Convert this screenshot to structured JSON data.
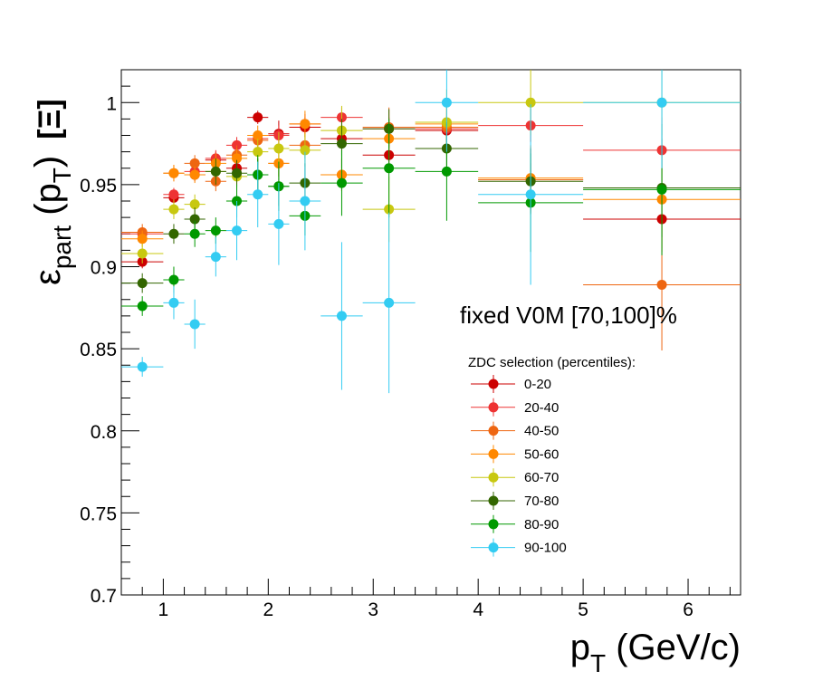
{
  "chart_data": {
    "type": "scatter",
    "title": "",
    "annotation": "fixed V0M [70,100]%",
    "xlabel": {
      "main": "p",
      "sub": "T",
      "rest": " (GeV/c)"
    },
    "ylabel": {
      "eps": "ε",
      "sub1": "part",
      "mid": " (p",
      "sub2": "T",
      "close": ")",
      "particle": "[Ξ]"
    },
    "xlim": [
      0.6,
      6.5
    ],
    "ylim": [
      0.7,
      1.02
    ],
    "xticks": [
      {
        "v": 1,
        "label": "1"
      },
      {
        "v": 2,
        "label": "2"
      },
      {
        "v": 3,
        "label": "3"
      },
      {
        "v": 4,
        "label": "4"
      },
      {
        "v": 5,
        "label": "5"
      },
      {
        "v": 6,
        "label": "6"
      }
    ],
    "yticks": [
      {
        "v": 0.7,
        "label": "0.7"
      },
      {
        "v": 0.75,
        "label": "0.75"
      },
      {
        "v": 0.8,
        "label": "0.8"
      },
      {
        "v": 0.85,
        "label": "0.85"
      },
      {
        "v": 0.9,
        "label": "0.9"
      },
      {
        "v": 0.95,
        "label": "0.95"
      },
      {
        "v": 1.0,
        "label": "1"
      }
    ],
    "legend": {
      "title": "ZDC selection (percentiles):",
      "position": "center-right"
    },
    "bins": [
      [
        0.6,
        1.0
      ],
      [
        1.0,
        1.2
      ],
      [
        1.2,
        1.4
      ],
      [
        1.4,
        1.6
      ],
      [
        1.6,
        1.8
      ],
      [
        1.8,
        2.0
      ],
      [
        2.0,
        2.2
      ],
      [
        2.2,
        2.5
      ],
      [
        2.5,
        2.9
      ],
      [
        2.9,
        3.4
      ],
      [
        3.4,
        4.0
      ],
      [
        4.0,
        5.0
      ],
      [
        5.0,
        6.5
      ]
    ],
    "x": [
      0.8,
      1.1,
      1.3,
      1.5,
      1.7,
      1.9,
      2.1,
      2.35,
      2.7,
      3.15,
      3.7,
      4.5,
      5.75
    ],
    "series": [
      {
        "name": "0-20",
        "color": "#cc0000",
        "values": [
          0.903,
          0.942,
          0.956,
          0.965,
          0.96,
          0.991,
          0.981,
          0.985,
          0.978,
          0.968,
          0.983,
          0.953,
          0.929
        ],
        "errors": [
          0.004,
          0.004,
          0.004,
          0.005,
          0.005,
          0.004,
          0.008,
          0.006,
          0.006,
          0.007,
          0.008,
          0.01,
          0.02
        ]
      },
      {
        "name": "20-40",
        "color": "#ee3333",
        "values": [
          0.92,
          0.944,
          0.958,
          0.966,
          0.974,
          0.978,
          0.98,
          0.987,
          0.991,
          0.984,
          0.984,
          0.986,
          0.971
        ],
        "errors": [
          0.004,
          0.004,
          0.004,
          0.005,
          0.005,
          0.005,
          0.006,
          0.006,
          0.006,
          0.007,
          0.008,
          0.01,
          0.02
        ]
      },
      {
        "name": "40-50",
        "color": "#ee6611",
        "values": [
          0.921,
          0.957,
          0.963,
          0.952,
          0.968,
          0.977,
          0.963,
          0.974,
          0.956,
          0.985,
          0.985,
          0.953,
          0.889
        ],
        "errors": [
          0.005,
          0.005,
          0.005,
          0.006,
          0.006,
          0.006,
          0.008,
          0.008,
          0.01,
          0.012,
          0.015,
          0.02,
          0.04
        ]
      },
      {
        "name": "50-60",
        "color": "#ff8800",
        "values": [
          0.917,
          0.957,
          0.956,
          0.963,
          0.966,
          0.98,
          0.963,
          0.987,
          0.956,
          0.978,
          0.987,
          0.954,
          0.941
        ],
        "errors": [
          0.005,
          0.005,
          0.005,
          0.006,
          0.006,
          0.006,
          0.008,
          0.008,
          0.01,
          0.012,
          0.015,
          0.02,
          0.03
        ]
      },
      {
        "name": "60-70",
        "color": "#c8c810",
        "values": [
          0.908,
          0.935,
          0.938,
          0.958,
          0.955,
          0.97,
          0.972,
          0.971,
          0.983,
          0.935,
          0.988,
          1.0,
          1.0
        ],
        "errors": [
          0.006,
          0.006,
          0.006,
          0.007,
          0.007,
          0.008,
          0.01,
          0.01,
          0.015,
          0.02,
          0.02,
          0.02,
          0.02
        ]
      },
      {
        "name": "70-80",
        "color": "#336600",
        "values": [
          0.89,
          0.92,
          0.929,
          0.958,
          0.957,
          0.956,
          0.949,
          0.951,
          0.975,
          0.984,
          0.972,
          0.952,
          0.948
        ],
        "errors": [
          0.006,
          0.006,
          0.007,
          0.008,
          0.008,
          0.01,
          0.012,
          0.012,
          0.015,
          0.012,
          0.015,
          0.02,
          0.03
        ]
      },
      {
        "name": "80-90",
        "color": "#009900",
        "values": [
          0.876,
          0.892,
          0.92,
          0.922,
          0.94,
          0.956,
          0.949,
          0.931,
          0.951,
          0.96,
          0.958,
          0.939,
          0.947
        ],
        "errors": [
          0.006,
          0.008,
          0.008,
          0.008,
          0.01,
          0.012,
          0.015,
          0.012,
          0.02,
          0.03,
          0.03,
          0.03,
          0.04
        ]
      },
      {
        "name": "90-100",
        "color": "#33ccf2",
        "values": [
          0.839,
          0.878,
          0.865,
          0.906,
          0.922,
          0.944,
          0.926,
          0.94,
          0.87,
          0.878,
          1.0,
          0.944,
          1.0
        ],
        "errors": [
          0.006,
          0.01,
          0.015,
          0.012,
          0.018,
          0.02,
          0.025,
          0.03,
          0.045,
          0.055,
          0.03,
          0.055,
          0.04
        ]
      }
    ]
  }
}
